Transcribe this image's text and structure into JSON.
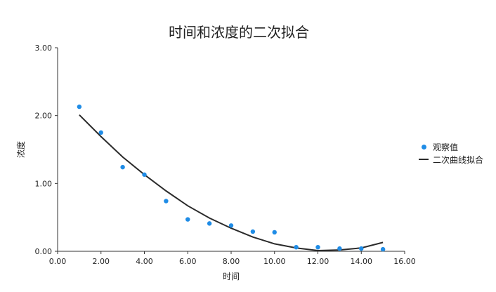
{
  "chart_data": {
    "type": "scatter",
    "title": "时间和浓度的二次拟合",
    "xlabel": "时间",
    "ylabel": "浓度",
    "xlim": [
      0,
      16
    ],
    "ylim": [
      0,
      3
    ],
    "x_ticks": [
      "0.00",
      "2.00",
      "4.00",
      "6.00",
      "8.00",
      "10.00",
      "12.00",
      "14.00",
      "16.00"
    ],
    "y_ticks": [
      "0.00",
      "1.00",
      "2.00",
      "3.00"
    ],
    "grid": false,
    "legend_position": "right",
    "series": [
      {
        "name": "观察值",
        "kind": "scatter",
        "color": "#1f8ce6",
        "x": [
          1,
          2,
          3,
          4,
          5,
          6,
          7,
          8,
          9,
          10,
          11,
          12,
          13,
          14,
          15
        ],
        "y": [
          2.13,
          1.75,
          1.24,
          1.13,
          0.74,
          0.47,
          0.41,
          0.38,
          0.29,
          0.28,
          0.06,
          0.06,
          0.04,
          0.04,
          0.03
        ]
      },
      {
        "name": "二次曲线拟合",
        "kind": "line",
        "color": "#2b2b2b",
        "x": [
          1,
          2,
          3,
          4,
          5,
          6,
          7,
          8,
          9,
          10,
          11,
          12,
          13,
          14,
          15
        ],
        "y": [
          2.01,
          1.69,
          1.39,
          1.13,
          0.89,
          0.67,
          0.49,
          0.34,
          0.21,
          0.11,
          0.05,
          0.01,
          0.02,
          0.05,
          0.13
        ]
      }
    ]
  }
}
